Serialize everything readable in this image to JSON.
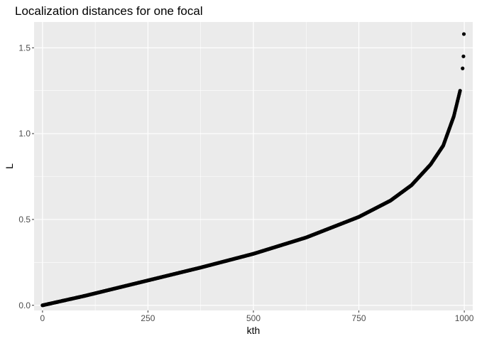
{
  "chart_data": {
    "type": "scatter",
    "title": "Localization distances for one focal",
    "xlabel": "kth",
    "ylabel": "L",
    "xlim": [
      -20,
      1020
    ],
    "ylim": [
      -0.03,
      1.65
    ],
    "x_ticks": [
      0,
      250,
      500,
      750,
      1000
    ],
    "x_tick_labels": [
      "0",
      "250",
      "500",
      "750",
      "1000"
    ],
    "y_ticks": [
      0.0,
      0.5,
      1.0,
      1.5
    ],
    "y_tick_labels": [
      "0.0",
      "0.5",
      "1.0",
      "1.5"
    ],
    "grid": true,
    "background": "#ebebeb",
    "grid_color": "#ffffff",
    "point_color": "#000000",
    "n_points": 1000,
    "curve_samples": [
      {
        "x": 0,
        "y": 0.0
      },
      {
        "x": 100,
        "y": 0.055
      },
      {
        "x": 250,
        "y": 0.145
      },
      {
        "x": 375,
        "y": 0.22
      },
      {
        "x": 500,
        "y": 0.3
      },
      {
        "x": 625,
        "y": 0.395
      },
      {
        "x": 750,
        "y": 0.515
      },
      {
        "x": 825,
        "y": 0.61
      },
      {
        "x": 875,
        "y": 0.7
      },
      {
        "x": 920,
        "y": 0.82
      },
      {
        "x": 950,
        "y": 0.93
      },
      {
        "x": 975,
        "y": 1.1
      },
      {
        "x": 985,
        "y": 1.2
      },
      {
        "x": 990,
        "y": 1.25
      },
      {
        "x": 995,
        "y": 1.38
      },
      {
        "x": 998,
        "y": 1.45
      },
      {
        "x": 1000,
        "y": 1.58
      }
    ],
    "outlier_points": [
      {
        "x": 996,
        "y": 1.38
      },
      {
        "x": 998,
        "y": 1.45
      },
      {
        "x": 999,
        "y": 1.58
      }
    ]
  }
}
